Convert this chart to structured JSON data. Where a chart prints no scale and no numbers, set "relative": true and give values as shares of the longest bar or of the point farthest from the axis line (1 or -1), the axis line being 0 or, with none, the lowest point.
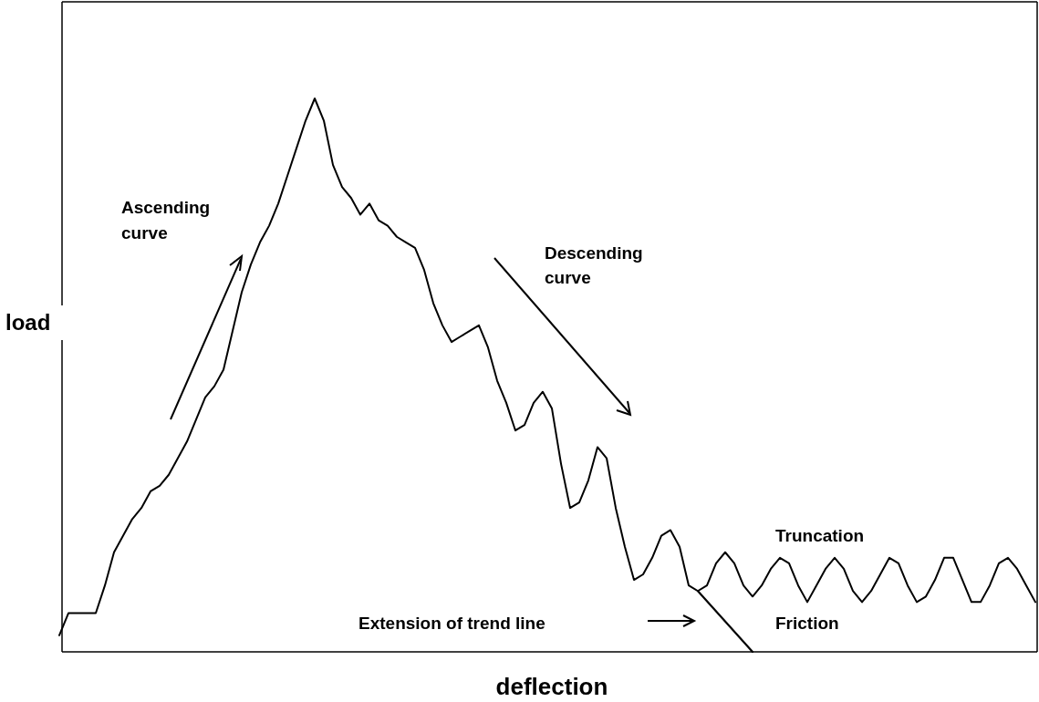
{
  "chart_data": {
    "type": "line",
    "relative": true,
    "xlabel": "deflection",
    "ylabel": "load",
    "categories": [
      null,
      null,
      null,
      null,
      null,
      null,
      null,
      null,
      null,
      null,
      null,
      null,
      null,
      null,
      null,
      null,
      null,
      null,
      null,
      null,
      null,
      null,
      null,
      null,
      null,
      null,
      null,
      null,
      null,
      null,
      null,
      null,
      null,
      null,
      null,
      null,
      null,
      null,
      null,
      null,
      null,
      null,
      null,
      null,
      null,
      null,
      null,
      null,
      null,
      null,
      null,
      null,
      null,
      null,
      null,
      null,
      null,
      null,
      null,
      null,
      null,
      null,
      null,
      null,
      null,
      null,
      null,
      null,
      null,
      null,
      null,
      null,
      null,
      null,
      null,
      null,
      null,
      null,
      null,
      null,
      null,
      null,
      null,
      null,
      null,
      null,
      null,
      null,
      null,
      null,
      null,
      null,
      null,
      null,
      null,
      null,
      null,
      null,
      null,
      null,
      null,
      null,
      null,
      null,
      null,
      null,
      null,
      null
    ],
    "series": [
      {
        "color": "#000000",
        "values": [
          0.03,
          0.07,
          0.07,
          0.07,
          0.07,
          0.12,
          0.18,
          0.21,
          0.24,
          0.26,
          0.29,
          0.3,
          0.32,
          0.35,
          0.38,
          0.42,
          0.46,
          0.48,
          0.51,
          0.58,
          0.65,
          0.7,
          0.74,
          0.77,
          0.81,
          0.86,
          0.91,
          0.96,
          1,
          0.96,
          0.88,
          0.84,
          0.82,
          0.79,
          0.81,
          0.78,
          0.77,
          0.75,
          0.74,
          0.73,
          0.69,
          0.63,
          0.59,
          0.56,
          0.57,
          0.58,
          0.59,
          0.55,
          0.49,
          0.45,
          0.4,
          0.41,
          0.45,
          0.47,
          0.44,
          0.34,
          0.26,
          0.27,
          0.31,
          0.37,
          0.35,
          0.26,
          0.19,
          0.13,
          0.14,
          0.17,
          0.21,
          0.22,
          0.19,
          0.12,
          0.11,
          0.12,
          0.16,
          0.18,
          0.16,
          0.12,
          0.1,
          0.12,
          0.15,
          0.17,
          0.16,
          0.12,
          0.09,
          0.12,
          0.15,
          0.17,
          0.15,
          0.11,
          0.09,
          0.11,
          0.14,
          0.17,
          0.16,
          0.12,
          0.09,
          0.1,
          0.13,
          0.17,
          0.17,
          0.13,
          0.09,
          0.09,
          0.12,
          0.16,
          0.17,
          0.15,
          0.12,
          0.09
        ]
      },
      {
        "color": "#000000",
        "values": [
          null,
          null,
          null,
          null,
          null,
          null,
          null,
          null,
          null,
          null,
          null,
          null,
          null,
          null,
          null,
          null,
          null,
          null,
          null,
          null,
          null,
          null,
          null,
          null,
          null,
          null,
          null,
          null,
          null,
          null,
          null,
          null,
          null,
          null,
          null,
          null,
          null,
          null,
          null,
          null,
          null,
          null,
          null,
          null,
          null,
          null,
          null,
          null,
          null,
          null,
          null,
          null,
          null,
          null,
          null,
          null,
          null,
          null,
          null,
          null,
          null,
          null,
          null,
          null,
          null,
          null,
          null,
          null,
          null,
          null,
          0.11,
          null,
          null,
          null,
          null,
          null,
          0,
          null,
          null,
          null,
          null,
          null,
          null,
          null,
          null,
          null,
          null,
          null,
          null,
          null,
          null,
          null,
          null,
          null,
          null,
          null,
          null,
          null,
          null,
          null,
          null,
          null,
          null,
          null,
          null,
          null,
          null,
          null
        ]
      }
    ],
    "annotations": [
      "Ascending curve",
      "Descending curve",
      "Truncation",
      "Extension of trend line",
      "Friction"
    ]
  }
}
